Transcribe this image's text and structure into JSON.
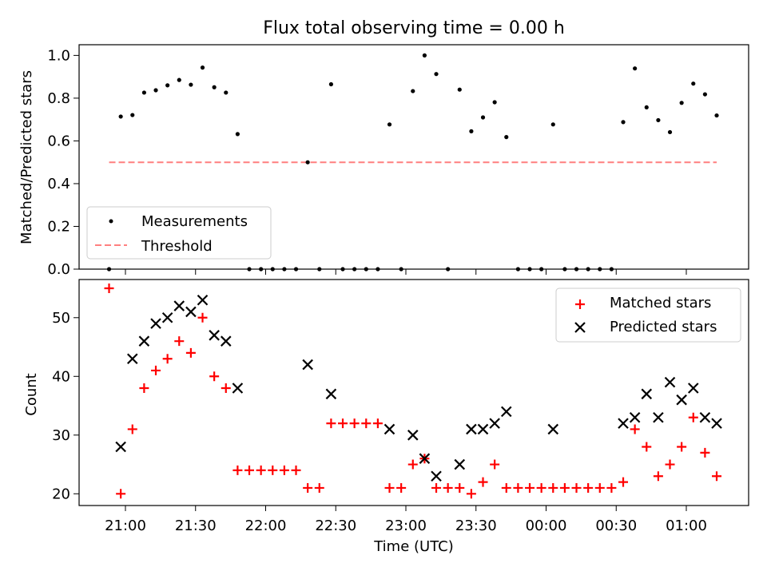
{
  "title": "Flux total observing time = 0.00 h",
  "chart_data": [
    {
      "type": "scatter",
      "ylabel": "Matched/Predicted stars",
      "ylim": [
        0,
        1.05
      ],
      "yticks": [
        "0.0",
        "0.2",
        "0.4",
        "0.6",
        "0.8",
        "1.0"
      ],
      "grid": false,
      "legend_position": "lower-left",
      "series": [
        {
          "name": "Measurements",
          "marker": "dot",
          "color": "#000000",
          "x": [
            "20:53",
            "20:58",
            "21:03",
            "21:08",
            "21:13",
            "21:18",
            "21:23",
            "21:28",
            "21:33",
            "21:38",
            "21:43",
            "21:48",
            "21:53",
            "21:58",
            "22:03",
            "22:08",
            "22:13",
            "22:18",
            "22:23",
            "22:28",
            "22:33",
            "22:38",
            "22:43",
            "22:48",
            "22:53",
            "22:58",
            "23:03",
            "23:08",
            "23:13",
            "23:18",
            "23:23",
            "23:28",
            "23:33",
            "23:38",
            "23:43",
            "23:48",
            "23:53",
            "23:58",
            "00:03",
            "00:08",
            "00:13",
            "00:18",
            "00:23",
            "00:28",
            "00:33",
            "00:38",
            "00:43",
            "00:48",
            "00:53",
            "00:58",
            "01:03",
            "01:08",
            "01:13"
          ],
          "y": [
            0.0,
            0.714,
            0.721,
            0.826,
            0.837,
            0.86,
            0.885,
            0.863,
            0.943,
            0.851,
            0.826,
            0.632,
            0.0,
            0.0,
            0.0,
            0.0,
            0.0,
            0.5,
            0.0,
            0.865,
            0.0,
            0.0,
            0.0,
            0.0,
            0.677,
            0.0,
            0.833,
            1.0,
            0.913,
            0.0,
            0.84,
            0.645,
            0.71,
            0.781,
            0.618,
            0.0,
            0.0,
            0.0,
            0.677,
            0.0,
            0.0,
            0.0,
            0.0,
            0.0,
            0.688,
            0.939,
            0.757,
            0.697,
            0.641,
            0.778,
            0.868,
            0.818,
            0.719
          ]
        },
        {
          "name": "Threshold",
          "style": "dashed",
          "color": "#ff7f7f",
          "x": [
            "20:53",
            "01:13"
          ],
          "y": [
            0.5,
            0.5
          ]
        }
      ]
    },
    {
      "type": "scatter",
      "ylabel": "Count",
      "xlabel": "Time (UTC)",
      "ylim": [
        18,
        56.5
      ],
      "yticks": [
        "20",
        "30",
        "40",
        "50"
      ],
      "xticks": [
        "21:00",
        "21:30",
        "22:00",
        "22:30",
        "23:00",
        "23:30",
        "00:00",
        "00:30",
        "01:00"
      ],
      "grid": false,
      "legend_position": "top-right",
      "series": [
        {
          "name": "Matched stars",
          "marker": "plus",
          "color": "#ff0000",
          "x": [
            "20:53",
            "20:58",
            "21:03",
            "21:08",
            "21:13",
            "21:18",
            "21:23",
            "21:28",
            "21:33",
            "21:38",
            "21:43",
            "21:48",
            "21:53",
            "21:58",
            "22:03",
            "22:08",
            "22:13",
            "22:18",
            "22:23",
            "22:28",
            "22:33",
            "22:38",
            "22:43",
            "22:48",
            "22:53",
            "22:58",
            "23:03",
            "23:08",
            "23:13",
            "23:18",
            "23:23",
            "23:28",
            "23:33",
            "23:38",
            "23:43",
            "23:48",
            "23:53",
            "23:58",
            "00:03",
            "00:08",
            "00:13",
            "00:18",
            "00:23",
            "00:28",
            "00:33",
            "00:38",
            "00:43",
            "00:48",
            "00:53",
            "00:58",
            "01:03",
            "01:08",
            "01:13"
          ],
          "y": [
            55,
            20,
            31,
            38,
            41,
            43,
            46,
            44,
            50,
            40,
            38,
            24,
            24,
            24,
            24,
            24,
            24,
            21,
            21,
            32,
            32,
            32,
            32,
            32,
            21,
            21,
            25,
            26,
            21,
            21,
            21,
            20,
            22,
            25,
            21,
            21,
            21,
            21,
            21,
            21,
            21,
            21,
            21,
            21,
            22,
            31,
            28,
            23,
            25,
            28,
            33,
            27,
            23
          ]
        },
        {
          "name": "Predicted stars",
          "marker": "x",
          "color": "#000000",
          "x": [
            "20:58",
            "21:03",
            "21:08",
            "21:13",
            "21:18",
            "21:23",
            "21:28",
            "21:33",
            "21:38",
            "21:43",
            "21:48",
            "22:18",
            "22:28",
            "22:53",
            "23:03",
            "23:08",
            "23:13",
            "23:23",
            "23:28",
            "23:33",
            "23:38",
            "23:43",
            "00:03",
            "00:33",
            "00:38",
            "00:43",
            "00:48",
            "00:53",
            "00:58",
            "01:03",
            "01:08",
            "01:13"
          ],
          "y": [
            28,
            43,
            46,
            49,
            50,
            52,
            51,
            53,
            47,
            46,
            38,
            42,
            37,
            31,
            30,
            26,
            23,
            25,
            31,
            31,
            32,
            34,
            31,
            32,
            33,
            37,
            33,
            39,
            36,
            38,
            33,
            32
          ]
        }
      ]
    }
  ]
}
